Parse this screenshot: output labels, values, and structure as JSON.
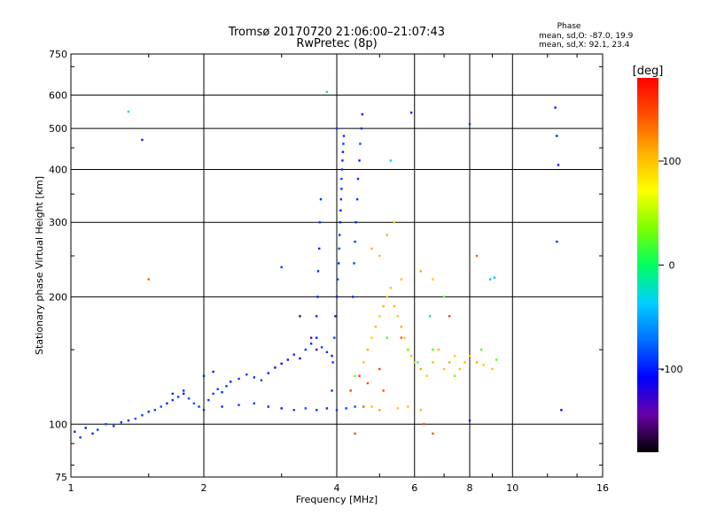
{
  "chart_data": {
    "type": "scatter",
    "title": "Tromsø 20170720 21:06:00–21:07:43",
    "subtitle": "RwPretec (8p)",
    "xlabel": "Frequency [MHz]",
    "ylabel": "Stationary phase Virtual Height [km]",
    "x_scale": "log2",
    "y_scale": "log",
    "xlim": [
      1,
      16
    ],
    "ylim": [
      75,
      750
    ],
    "x_ticks": [
      1,
      2,
      4,
      6,
      8,
      10,
      16
    ],
    "x_tick_labels": [
      "1",
      "2",
      "4",
      "6",
      "8",
      "10",
      "16"
    ],
    "y_ticks": [
      75,
      100,
      200,
      300,
      400,
      500,
      600,
      750
    ],
    "y_tick_labels": [
      "75",
      "100",
      "200",
      "300",
      "400",
      "500",
      "600",
      "750"
    ],
    "grid": true,
    "phase_info": {
      "heading": "Phase",
      "line_o": "mean, sd,O: -87.0, 19.9",
      "line_x": "mean, sd,X:  92.1, 23.4"
    },
    "colorbar": {
      "label": "[deg]",
      "range": [
        -180,
        180
      ],
      "ticks": [
        100,
        0,
        -100
      ],
      "tick_labels": [
        "100",
        "0",
        "-100"
      ],
      "colors": [
        "#000000",
        "#6a00a8",
        "#0000ff",
        "#0070ff",
        "#00d0ff",
        "#00ff60",
        "#80ff00",
        "#ffff00",
        "#ffb000",
        "#ff5000",
        "#ff0000"
      ]
    },
    "series": [
      {
        "values": [
          [
            1.02,
            96,
            -95
          ],
          [
            1.05,
            93,
            -92
          ],
          [
            1.08,
            98,
            -100
          ],
          [
            1.12,
            95,
            -97
          ],
          [
            1.15,
            97,
            -90
          ],
          [
            1.2,
            100,
            -85
          ],
          [
            1.25,
            99,
            -95
          ],
          [
            1.3,
            101,
            -88
          ],
          [
            1.35,
            102,
            -92
          ],
          [
            1.4,
            103,
            -80
          ],
          [
            1.45,
            105,
            -90
          ],
          [
            1.5,
            107,
            -95
          ],
          [
            1.55,
            108,
            -85
          ],
          [
            1.6,
            110,
            -82
          ],
          [
            1.65,
            112,
            -95
          ],
          [
            1.7,
            114,
            -90
          ],
          [
            1.75,
            116,
            -88
          ],
          [
            1.8,
            118,
            -100
          ],
          [
            1.85,
            115,
            -85
          ],
          [
            1.9,
            112,
            -80
          ],
          [
            1.95,
            110,
            -92
          ],
          [
            2.0,
            108,
            -95
          ],
          [
            2.05,
            114,
            -90
          ],
          [
            2.1,
            118,
            -88
          ],
          [
            2.15,
            121,
            -85
          ],
          [
            2.2,
            119,
            -95
          ],
          [
            2.25,
            123,
            -92
          ],
          [
            2.3,
            126,
            -98
          ],
          [
            2.4,
            128,
            -90
          ],
          [
            2.5,
            131,
            -88
          ],
          [
            2.6,
            129,
            -95
          ],
          [
            2.7,
            127,
            -85
          ],
          [
            2.8,
            132,
            -100
          ],
          [
            2.9,
            136,
            -110
          ],
          [
            3.0,
            139,
            -115
          ],
          [
            3.1,
            142,
            -100
          ],
          [
            3.2,
            146,
            -95
          ],
          [
            3.3,
            143,
            -105
          ],
          [
            3.4,
            150,
            -90
          ],
          [
            3.5,
            155,
            -95
          ],
          [
            3.6,
            160,
            -100
          ],
          [
            3.7,
            152,
            -88
          ],
          [
            3.8,
            148,
            -95
          ],
          [
            3.9,
            145,
            -100
          ],
          [
            2.2,
            110,
            -95
          ],
          [
            2.4,
            111,
            -90
          ],
          [
            2.6,
            112,
            -88
          ],
          [
            2.8,
            110,
            -95
          ],
          [
            3.0,
            109,
            -100
          ],
          [
            3.2,
            108,
            -90
          ],
          [
            3.4,
            109,
            -85
          ],
          [
            3.6,
            108,
            -92
          ],
          [
            3.8,
            109,
            -95
          ],
          [
            4.0,
            108,
            -90
          ],
          [
            4.2,
            109,
            -88
          ],
          [
            4.4,
            110,
            -85
          ],
          [
            2.0,
            130,
            -95
          ],
          [
            2.1,
            133,
            -100
          ],
          [
            1.8,
            120,
            -92
          ],
          [
            1.7,
            118,
            -95
          ]
        ]
      },
      {
        "values": [
          [
            3.9,
            120,
            -95
          ],
          [
            3.92,
            140,
            -90
          ],
          [
            3.95,
            160,
            -88
          ],
          [
            3.97,
            180,
            -95
          ],
          [
            4.0,
            200,
            -100
          ],
          [
            4.02,
            220,
            -92
          ],
          [
            4.04,
            240,
            -95
          ],
          [
            4.05,
            260,
            -88
          ],
          [
            4.06,
            280,
            -90
          ],
          [
            4.07,
            300,
            -95
          ],
          [
            4.08,
            320,
            -100
          ],
          [
            4.09,
            340,
            -92
          ],
          [
            4.1,
            360,
            -95
          ],
          [
            4.1,
            380,
            -88
          ],
          [
            4.11,
            400,
            -90
          ],
          [
            4.12,
            420,
            -95
          ],
          [
            4.13,
            440,
            -100
          ],
          [
            4.14,
            460,
            -92
          ],
          [
            4.15,
            480,
            -95
          ],
          [
            4.0,
            500,
            -90
          ],
          [
            4.35,
            200,
            -95
          ],
          [
            4.38,
            240,
            -88
          ],
          [
            4.4,
            270,
            -90
          ],
          [
            4.42,
            300,
            -95
          ],
          [
            4.45,
            340,
            -92
          ],
          [
            4.47,
            380,
            -95
          ],
          [
            4.5,
            420,
            -100
          ],
          [
            4.52,
            460,
            -88
          ],
          [
            4.55,
            500,
            -92
          ],
          [
            4.57,
            540,
            -95
          ],
          [
            3.6,
            180,
            -95
          ],
          [
            3.62,
            200,
            -100
          ],
          [
            3.63,
            230,
            -92
          ],
          [
            3.65,
            260,
            -95
          ],
          [
            3.66,
            300,
            -88
          ],
          [
            3.68,
            340,
            -90
          ]
        ]
      },
      {
        "values": [
          [
            4.6,
            140,
            100
          ],
          [
            4.7,
            150,
            110
          ],
          [
            4.8,
            160,
            95
          ],
          [
            4.9,
            170,
            105
          ],
          [
            5.0,
            180,
            100
          ],
          [
            5.1,
            190,
            110
          ],
          [
            5.2,
            200,
            95
          ],
          [
            5.3,
            210,
            100
          ],
          [
            5.4,
            190,
            105
          ],
          [
            5.5,
            180,
            100
          ],
          [
            5.6,
            170,
            110
          ],
          [
            5.7,
            160,
            95
          ],
          [
            5.8,
            150,
            100
          ],
          [
            5.9,
            145,
            105
          ],
          [
            6.0,
            140,
            100
          ],
          [
            6.2,
            135,
            110
          ],
          [
            6.4,
            130,
            95
          ],
          [
            6.6,
            140,
            100
          ],
          [
            6.8,
            150,
            105
          ],
          [
            7.0,
            135,
            100
          ],
          [
            7.2,
            140,
            110
          ],
          [
            7.4,
            145,
            95
          ],
          [
            7.6,
            135,
            100
          ],
          [
            7.8,
            140,
            105
          ],
          [
            8.0,
            145,
            100
          ],
          [
            8.3,
            140,
            110
          ],
          [
            8.6,
            138,
            95
          ],
          [
            9.0,
            135,
            100
          ],
          [
            5.0,
            250,
            100
          ],
          [
            5.2,
            280,
            110
          ],
          [
            5.4,
            300,
            95
          ],
          [
            4.8,
            260,
            105
          ],
          [
            5.6,
            220,
            100
          ],
          [
            6.2,
            230,
            110
          ],
          [
            6.6,
            220,
            95
          ],
          [
            4.8,
            110,
            100
          ],
          [
            5.0,
            108,
            110
          ],
          [
            5.5,
            109,
            95
          ],
          [
            5.8,
            110,
            100
          ],
          [
            6.2,
            108,
            105
          ]
        ]
      },
      {
        "values": [
          [
            1.5,
            220,
            140
          ],
          [
            4.3,
            120,
            150
          ],
          [
            4.5,
            130,
            155
          ],
          [
            4.7,
            125,
            145
          ],
          [
            5.0,
            135,
            150
          ],
          [
            5.6,
            160,
            140
          ],
          [
            6.3,
            100,
            145
          ],
          [
            7.2,
            180,
            150
          ],
          [
            8.3,
            250,
            140
          ],
          [
            6.6,
            95,
            145
          ],
          [
            4.4,
            95,
            150
          ],
          [
            4.6,
            110,
            140
          ],
          [
            5.1,
            120,
            145
          ]
        ]
      },
      {
        "values": [
          [
            4.4,
            130,
            30
          ],
          [
            5.2,
            160,
            20
          ],
          [
            5.8,
            150,
            25
          ],
          [
            6.1,
            140,
            15
          ],
          [
            6.6,
            150,
            20
          ],
          [
            7.4,
            130,
            30
          ],
          [
            8.5,
            150,
            20
          ],
          [
            9.2,
            142,
            25
          ],
          [
            1.35,
            548,
            -30
          ],
          [
            3.8,
            610,
            -20
          ],
          [
            5.3,
            420,
            -30
          ],
          [
            6.5,
            180,
            -20
          ],
          [
            7.0,
            200,
            30
          ],
          [
            8.9,
            220,
            -40
          ],
          [
            9.1,
            222,
            -45
          ]
        ]
      },
      {
        "values": [
          [
            1.45,
            470,
            -100
          ],
          [
            12.5,
            560,
            -100
          ],
          [
            12.6,
            480,
            -95
          ],
          [
            12.7,
            410,
            -100
          ],
          [
            12.6,
            270,
            -95
          ],
          [
            12.9,
            108,
            -105
          ],
          [
            8.0,
            512,
            -90
          ],
          [
            8.0,
            102,
            -95
          ],
          [
            5.9,
            545,
            -100
          ],
          [
            3.0,
            235,
            -90
          ],
          [
            3.3,
            180,
            -155
          ],
          [
            3.5,
            160,
            -140
          ],
          [
            3.6,
            150,
            -150
          ]
        ]
      }
    ]
  }
}
